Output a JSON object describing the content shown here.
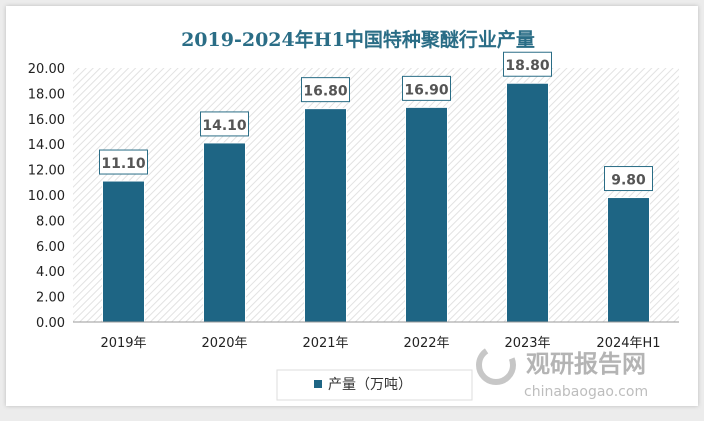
{
  "chart_data": {
    "type": "bar",
    "title": "2019-2024年H1中国特种聚醚行业产量",
    "categories": [
      "2019年",
      "2020年",
      "2021年",
      "2022年",
      "2023年",
      "2024年H1"
    ],
    "series": [
      {
        "name": "产量（万吨）",
        "values": [
          11.1,
          14.1,
          16.8,
          16.9,
          18.8,
          9.8
        ]
      }
    ],
    "value_labels": [
      "11.10",
      "14.10",
      "16.80",
      "16.90",
      "18.80",
      "9.80"
    ],
    "yticks": [
      "0.00",
      "2.00",
      "4.00",
      "6.00",
      "8.00",
      "10.00",
      "12.00",
      "14.00",
      "16.00",
      "18.00",
      "20.00"
    ],
    "ylim": [
      0,
      20
    ],
    "xlabel": "",
    "ylabel": "",
    "legend": "bottom-left",
    "bar_color": "#1e6584",
    "title_color": "#2a6d86"
  },
  "watermark": {
    "brand": "观研报告网",
    "url": "chinabaogao.com"
  }
}
